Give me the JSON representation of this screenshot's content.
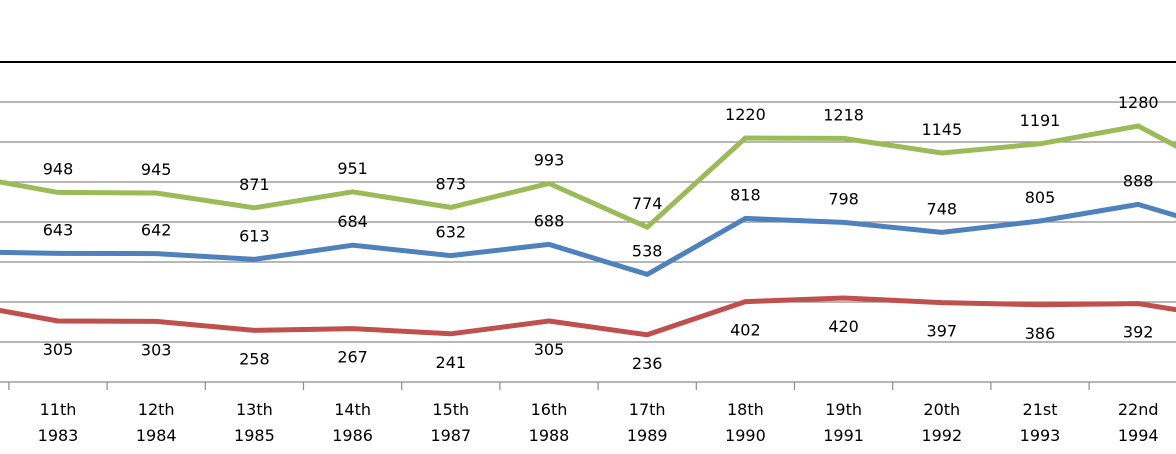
{
  "chart_data": {
    "type": "line",
    "categories": [
      [
        "11th",
        "1983"
      ],
      [
        "12th",
        "1984"
      ],
      [
        "13th",
        "1985"
      ],
      [
        "14th",
        "1986"
      ],
      [
        "15th",
        "1987"
      ],
      [
        "16th",
        "1988"
      ],
      [
        "17th",
        "1989"
      ],
      [
        "18th",
        "1990"
      ],
      [
        "19th",
        "1991"
      ],
      [
        "20th",
        "1992"
      ],
      [
        "21st",
        "1993"
      ],
      [
        "22nd",
        "1994"
      ]
    ],
    "series": [
      {
        "color": "#9bbb59",
        "values": [
          948,
          945,
          871,
          951,
          873,
          993,
          774,
          1220,
          1218,
          1145,
          1191,
          1280
        ],
        "edge_left": 1000,
        "edge_right": 1180,
        "label_position": "above"
      },
      {
        "color": "#4f81bd",
        "values": [
          643,
          642,
          613,
          684,
          632,
          688,
          538,
          818,
          798,
          748,
          805,
          888
        ],
        "edge_left": 648,
        "edge_right": 832,
        "label_position": "above"
      },
      {
        "color": "#c0504d",
        "values": [
          305,
          303,
          258,
          267,
          241,
          305,
          236,
          402,
          420,
          397,
          386,
          392
        ],
        "edge_left": 358,
        "edge_right": 362,
        "label_position": "below"
      }
    ],
    "ylim": [
      0,
      1600
    ],
    "gridlines": true
  }
}
